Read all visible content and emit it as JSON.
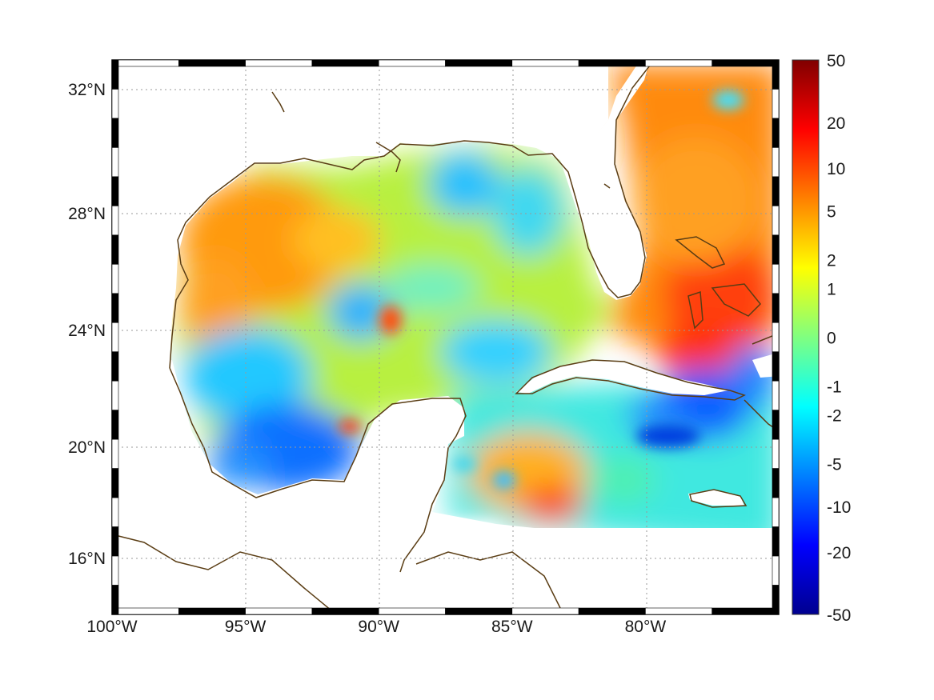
{
  "map": {
    "type": "heatmap",
    "lon_range": [
      -100,
      -75
    ],
    "lat_range": [
      14.5,
      33
    ],
    "x_ticks": [
      {
        "lon": -100,
        "label": "100°W"
      },
      {
        "lon": -95,
        "label": "95°W"
      },
      {
        "lon": -90,
        "label": "90°W"
      },
      {
        "lon": -85,
        "label": "85°W"
      },
      {
        "lon": -80,
        "label": "80°W"
      }
    ],
    "y_ticks": [
      {
        "lat": 32,
        "label": "32°N"
      },
      {
        "lat": 28,
        "label": "28°N"
      },
      {
        "lat": 24,
        "label": "24°N"
      },
      {
        "lat": 20,
        "label": "20°N"
      },
      {
        "lat": 16,
        "label": "16°N"
      }
    ],
    "grid": true,
    "coastline_color": "#5a3d14",
    "frame_style": "black-white checkered border"
  },
  "colorbar": {
    "position": "right",
    "colors": [
      "#00008f",
      "#0000ff",
      "#0080ff",
      "#00ffff",
      "#80ff80",
      "#ffff00",
      "#ff8000",
      "#ff0000",
      "#800000"
    ],
    "labels": [
      "50",
      "20",
      "10",
      "5",
      "2",
      "1",
      "0",
      "-1",
      "-2",
      "-5",
      "-10",
      "-20",
      "-50"
    ],
    "values": [
      50,
      20,
      10,
      5,
      2,
      1,
      0,
      -1,
      -2,
      -5,
      -10,
      -20,
      -50
    ]
  }
}
